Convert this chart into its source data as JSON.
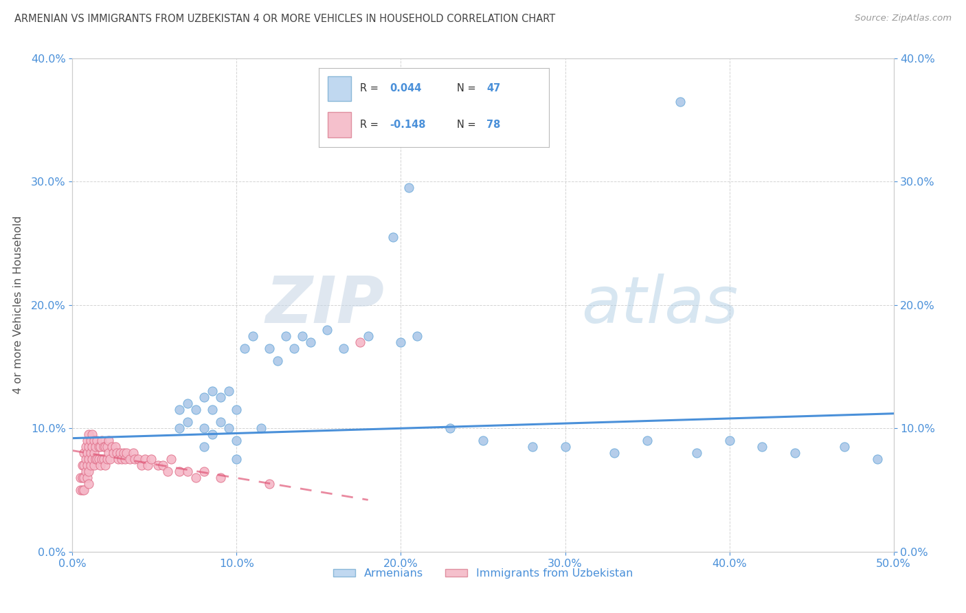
{
  "title": "ARMENIAN VS IMMIGRANTS FROM UZBEKISTAN 4 OR MORE VEHICLES IN HOUSEHOLD CORRELATION CHART",
  "source": "Source: ZipAtlas.com",
  "ylabel_label": "4 or more Vehicles in Household",
  "xlim": [
    0.0,
    0.5
  ],
  "ylim": [
    0.0,
    0.4
  ],
  "armenian_R": 0.044,
  "armenian_N": 47,
  "uzbekistan_R": -0.148,
  "uzbekistan_N": 78,
  "armenian_color": "#adc8e8",
  "armenian_edge_color": "#6aaada",
  "armenian_line_color": "#4a90d9",
  "uzbekistan_color": "#f5b8c8",
  "uzbekistan_edge_color": "#e0708a",
  "uzbekistan_line_color": "#e05878",
  "background_color": "#ffffff",
  "grid_color": "#c8c8c8",
  "title_color": "#444444",
  "axis_label_color": "#666666",
  "tick_color": "#4a90d9",
  "watermark_zip": "ZIP",
  "watermark_atlas": "atlas",
  "armenian_x": [
    0.065,
    0.065,
    0.07,
    0.07,
    0.075,
    0.08,
    0.08,
    0.08,
    0.085,
    0.085,
    0.085,
    0.09,
    0.09,
    0.095,
    0.095,
    0.1,
    0.1,
    0.1,
    0.105,
    0.11,
    0.115,
    0.12,
    0.125,
    0.13,
    0.135,
    0.14,
    0.145,
    0.155,
    0.165,
    0.18,
    0.195,
    0.2,
    0.205,
    0.21,
    0.23,
    0.25,
    0.28,
    0.3,
    0.33,
    0.35,
    0.37,
    0.38,
    0.4,
    0.42,
    0.44,
    0.47,
    0.49
  ],
  "armenian_y": [
    0.115,
    0.1,
    0.12,
    0.105,
    0.115,
    0.125,
    0.1,
    0.085,
    0.13,
    0.115,
    0.095,
    0.125,
    0.105,
    0.13,
    0.1,
    0.115,
    0.09,
    0.075,
    0.165,
    0.175,
    0.1,
    0.165,
    0.155,
    0.175,
    0.165,
    0.175,
    0.17,
    0.18,
    0.165,
    0.175,
    0.255,
    0.17,
    0.295,
    0.175,
    0.1,
    0.09,
    0.085,
    0.085,
    0.08,
    0.09,
    0.365,
    0.08,
    0.09,
    0.085,
    0.08,
    0.085,
    0.075
  ],
  "uzbekistan_x": [
    0.005,
    0.005,
    0.006,
    0.006,
    0.006,
    0.007,
    0.007,
    0.007,
    0.007,
    0.008,
    0.008,
    0.008,
    0.009,
    0.009,
    0.009,
    0.009,
    0.01,
    0.01,
    0.01,
    0.01,
    0.01,
    0.011,
    0.011,
    0.011,
    0.012,
    0.012,
    0.012,
    0.013,
    0.013,
    0.013,
    0.014,
    0.014,
    0.015,
    0.015,
    0.016,
    0.016,
    0.017,
    0.017,
    0.018,
    0.018,
    0.019,
    0.019,
    0.02,
    0.02,
    0.021,
    0.021,
    0.022,
    0.022,
    0.023,
    0.024,
    0.025,
    0.026,
    0.027,
    0.028,
    0.029,
    0.03,
    0.031,
    0.032,
    0.033,
    0.035,
    0.037,
    0.038,
    0.04,
    0.042,
    0.044,
    0.046,
    0.048,
    0.052,
    0.055,
    0.058,
    0.06,
    0.065,
    0.07,
    0.075,
    0.08,
    0.09,
    0.12,
    0.175
  ],
  "uzbekistan_y": [
    0.06,
    0.05,
    0.07,
    0.06,
    0.05,
    0.08,
    0.07,
    0.06,
    0.05,
    0.085,
    0.075,
    0.065,
    0.09,
    0.08,
    0.07,
    0.06,
    0.095,
    0.085,
    0.075,
    0.065,
    0.055,
    0.09,
    0.08,
    0.07,
    0.095,
    0.085,
    0.075,
    0.09,
    0.08,
    0.07,
    0.085,
    0.075,
    0.09,
    0.075,
    0.085,
    0.075,
    0.085,
    0.07,
    0.09,
    0.075,
    0.085,
    0.075,
    0.085,
    0.07,
    0.085,
    0.075,
    0.09,
    0.08,
    0.075,
    0.085,
    0.08,
    0.085,
    0.08,
    0.075,
    0.08,
    0.075,
    0.08,
    0.075,
    0.08,
    0.075,
    0.08,
    0.075,
    0.075,
    0.07,
    0.075,
    0.07,
    0.075,
    0.07,
    0.07,
    0.065,
    0.075,
    0.065,
    0.065,
    0.06,
    0.065,
    0.06,
    0.055,
    0.17
  ]
}
